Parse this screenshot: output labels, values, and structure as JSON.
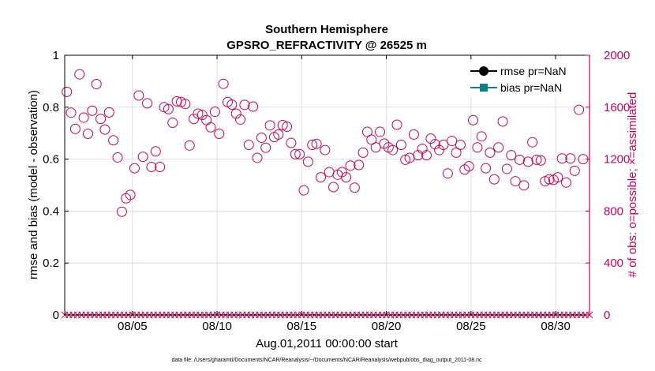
{
  "colors": {
    "right_axis": "#cc0055",
    "rmse": "#000000",
    "bias": "#0f8080",
    "grid": "#dedede",
    "axis": "#000000"
  },
  "chart_data": {
    "type": "scatter",
    "title": "Southern Hemisphere",
    "subtitle": "GPSRO_REFRACTIVITY @ 26525 m",
    "xlabel": "Aug.01,2011 00:00:00 start",
    "ylabel_left": "rmse and bias (model - observation)",
    "ylabel_right": "# of obs: o=possible; ×=assimilated",
    "footnote": "data file: /Users/gharamti/Documents/NCAR/Reanalysis/~/Documents/NCAR/Reanalysis/webpub/obs_diag_output_2011-08.nc",
    "xlim": [
      1.0,
      32.0
    ],
    "ylim_left": [
      0,
      1
    ],
    "ylim_right": [
      0,
      2000
    ],
    "x_ticks": [
      {
        "value": 5,
        "label": "08/05"
      },
      {
        "value": 10,
        "label": "08/10"
      },
      {
        "value": 15,
        "label": "08/15"
      },
      {
        "value": 20,
        "label": "08/20"
      },
      {
        "value": 25,
        "label": "08/25"
      },
      {
        "value": 30,
        "label": "08/30"
      }
    ],
    "y_ticks_left": [
      {
        "value": 0,
        "label": "0"
      },
      {
        "value": 0.2,
        "label": "0.2"
      },
      {
        "value": 0.4,
        "label": "0.4"
      },
      {
        "value": 0.6,
        "label": "0.6"
      },
      {
        "value": 0.8,
        "label": "0.8"
      },
      {
        "value": 1,
        "label": "1"
      }
    ],
    "y_ticks_right": [
      {
        "value": 0,
        "label": "0"
      },
      {
        "value": 400,
        "label": "400"
      },
      {
        "value": 800,
        "label": "800"
      },
      {
        "value": 1200,
        "label": "1200"
      },
      {
        "value": 1600,
        "label": "1600"
      },
      {
        "value": 2000,
        "label": "2000"
      }
    ],
    "legend": [
      {
        "label": "rmse pr=NaN",
        "marker": "circle"
      },
      {
        "label": "bias pr=NaN",
        "marker": "square"
      }
    ],
    "legend_position": "top-right",
    "series": [
      {
        "name": "# possible obs",
        "marker": "circle",
        "axis": "right",
        "points": [
          [
            1.125,
            1718
          ],
          [
            1.375,
            1558
          ],
          [
            1.625,
            1433
          ],
          [
            1.875,
            1853
          ],
          [
            2.125,
            1520
          ],
          [
            2.375,
            1395
          ],
          [
            2.625,
            1573
          ],
          [
            2.875,
            1778
          ],
          [
            3.125,
            1510
          ],
          [
            3.375,
            1428
          ],
          [
            3.625,
            1560
          ],
          [
            3.875,
            1345
          ],
          [
            4.125,
            1213
          ],
          [
            4.375,
            795
          ],
          [
            4.625,
            898
          ],
          [
            4.875,
            925
          ],
          [
            5.125,
            1130
          ],
          [
            5.375,
            1690
          ],
          [
            5.625,
            1218
          ],
          [
            5.875,
            1630
          ],
          [
            6.125,
            1140
          ],
          [
            6.375,
            1260
          ],
          [
            6.625,
            1140
          ],
          [
            6.875,
            1600
          ],
          [
            7.125,
            1585
          ],
          [
            7.375,
            1480
          ],
          [
            7.625,
            1645
          ],
          [
            7.875,
            1640
          ],
          [
            8.125,
            1625
          ],
          [
            8.375,
            1305
          ],
          [
            8.625,
            1510
          ],
          [
            8.875,
            1550
          ],
          [
            9.125,
            1540
          ],
          [
            9.375,
            1500
          ],
          [
            9.625,
            1445
          ],
          [
            9.875,
            1565
          ],
          [
            10.125,
            1395
          ],
          [
            10.375,
            1780
          ],
          [
            10.625,
            1640
          ],
          [
            10.875,
            1620
          ],
          [
            11.125,
            1550
          ],
          [
            11.375,
            1505
          ],
          [
            11.625,
            1618
          ],
          [
            11.875,
            1310
          ],
          [
            12.125,
            1605
          ],
          [
            12.375,
            1210
          ],
          [
            12.625,
            1365
          ],
          [
            12.875,
            1288
          ],
          [
            13.125,
            1460
          ],
          [
            13.375,
            1370
          ],
          [
            13.625,
            1390
          ],
          [
            13.875,
            1462
          ],
          [
            14.125,
            1450
          ],
          [
            14.375,
            1325
          ],
          [
            14.625,
            1238
          ],
          [
            14.875,
            1238
          ],
          [
            15.125,
            960
          ],
          [
            15.375,
            1180
          ],
          [
            15.625,
            1310
          ],
          [
            15.875,
            1318
          ],
          [
            16.125,
            1060
          ],
          [
            16.375,
            1270
          ],
          [
            16.625,
            1100
          ],
          [
            16.875,
            985
          ],
          [
            17.125,
            1080
          ],
          [
            17.375,
            1100
          ],
          [
            17.625,
            1060
          ],
          [
            17.875,
            1150
          ],
          [
            18.125,
            980
          ],
          [
            18.375,
            1155
          ],
          [
            18.625,
            1250
          ],
          [
            18.875,
            1410
          ],
          [
            19.125,
            1350
          ],
          [
            19.375,
            1290
          ],
          [
            19.625,
            1410
          ],
          [
            19.875,
            1320
          ],
          [
            20.125,
            1290
          ],
          [
            20.375,
            1270
          ],
          [
            20.625,
            1465
          ],
          [
            20.875,
            1310
          ],
          [
            21.125,
            1195
          ],
          [
            21.375,
            1210
          ],
          [
            21.625,
            1390
          ],
          [
            21.875,
            1230
          ],
          [
            22.125,
            1280
          ],
          [
            22.375,
            1230
          ],
          [
            22.625,
            1358
          ],
          [
            22.875,
            1315
          ],
          [
            23.125,
            1270
          ],
          [
            23.375,
            1310
          ],
          [
            23.625,
            1090
          ],
          [
            23.875,
            1340
          ],
          [
            24.125,
            1250
          ],
          [
            24.375,
            1310
          ],
          [
            24.625,
            1120
          ],
          [
            24.875,
            1145
          ],
          [
            25.125,
            1500
          ],
          [
            25.375,
            1290
          ],
          [
            25.625,
            1375
          ],
          [
            25.875,
            1130
          ],
          [
            26.125,
            1250
          ],
          [
            26.375,
            1045
          ],
          [
            26.625,
            1290
          ],
          [
            26.875,
            1490
          ],
          [
            27.125,
            1125
          ],
          [
            27.375,
            1230
          ],
          [
            27.625,
            1030
          ],
          [
            27.875,
            1195
          ],
          [
            28.125,
            998
          ],
          [
            28.375,
            1180
          ],
          [
            28.625,
            1330
          ],
          [
            28.875,
            1195
          ],
          [
            29.125,
            1190
          ],
          [
            29.375,
            1030
          ],
          [
            29.625,
            1045
          ],
          [
            29.875,
            1040
          ],
          [
            30.125,
            1060
          ],
          [
            30.375,
            1205
          ],
          [
            30.625,
            1020
          ],
          [
            30.875,
            1205
          ],
          [
            31.125,
            1110
          ],
          [
            31.375,
            1580
          ],
          [
            31.625,
            1200
          ]
        ]
      },
      {
        "name": "# assimilated obs",
        "marker": "x",
        "axis": "right",
        "points_note": "zero at every analysis time (every 6 h from 08/01 through 08/31)",
        "value": 0
      }
    ]
  }
}
